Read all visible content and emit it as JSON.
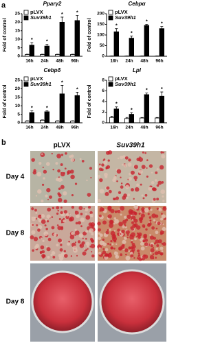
{
  "panel_labels": {
    "a": "a",
    "b": "b"
  },
  "panel_b": {
    "columns": [
      "pLVX",
      "Suv39h1"
    ],
    "rows": [
      "Day 4",
      "Day 8",
      "Day 8"
    ]
  },
  "chart_data": [
    {
      "type": "bar",
      "title": "Pparγ2",
      "y_label": "Fold of control",
      "categories": [
        "16h",
        "24h",
        "48h",
        "96h"
      ],
      "series": [
        {
          "name": "pLVX",
          "color": "#ffffff",
          "values": [
            1,
            1,
            1,
            1
          ],
          "errors": [
            0.2,
            0.2,
            0.2,
            0.2
          ]
        },
        {
          "name": "Suv39h1",
          "color": "#000000",
          "values": [
            6.5,
            6,
            20,
            21
          ],
          "errors": [
            1.5,
            1,
            3,
            3
          ]
        }
      ],
      "annotations": [
        "*",
        "*",
        "*",
        "*"
      ],
      "ylim": [
        0,
        25
      ],
      "yticks": [
        0,
        5,
        10,
        15,
        20,
        25
      ]
    },
    {
      "type": "bar",
      "title": "Cebpα",
      "y_label": "Fold of control",
      "categories": [
        "16h",
        "24h",
        "48h",
        "96h"
      ],
      "series": [
        {
          "name": "pLVX",
          "color": "#ffffff",
          "values": [
            1,
            1,
            1,
            1
          ],
          "errors": [
            0.5,
            0.5,
            0.5,
            0.5
          ]
        },
        {
          "name": "Suv39h1",
          "color": "#000000",
          "values": [
            115,
            85,
            145,
            130
          ],
          "errors": [
            15,
            10,
            5,
            10
          ]
        }
      ],
      "annotations": [
        "*",
        "*",
        "*",
        "*"
      ],
      "ylim": [
        0,
        200
      ],
      "yticks": [
        0,
        50,
        100,
        150,
        200
      ]
    },
    {
      "type": "bar",
      "title": "Cebpδ",
      "y_label": "Fold of control",
      "categories": [
        "16h",
        "24h",
        "48h",
        "96h"
      ],
      "series": [
        {
          "name": "pLVX",
          "color": "#ffffff",
          "values": [
            1,
            1.5,
            1,
            1
          ],
          "errors": [
            0.2,
            0.2,
            0.2,
            0.2
          ]
        },
        {
          "name": "Suv39h1",
          "color": "#000000",
          "values": [
            6,
            6.5,
            17,
            16
          ],
          "errors": [
            1,
            0.5,
            5,
            2
          ]
        }
      ],
      "annotations": [
        "*",
        "*",
        "*",
        "*"
      ],
      "ylim": [
        0,
        25
      ],
      "yticks": [
        0,
        5,
        10,
        15,
        20,
        25
      ]
    },
    {
      "type": "bar",
      "title": "Lpl",
      "y_label": "Fold of control",
      "categories": [
        "16h",
        "24h",
        "48h",
        "96h"
      ],
      "series": [
        {
          "name": "pLVX",
          "color": "#ffffff",
          "values": [
            1,
            0.8,
            0.9,
            0.9
          ],
          "errors": [
            0.2,
            0.2,
            0.1,
            0.1
          ]
        },
        {
          "name": "Suv39h1",
          "color": "#000000",
          "values": [
            2.6,
            1.6,
            5.3,
            5
          ],
          "errors": [
            0.4,
            0.3,
            0.3,
            0.8
          ]
        }
      ],
      "annotations": [
        "*",
        "*",
        "*",
        "*"
      ],
      "ylim": [
        0,
        8
      ],
      "yticks": [
        0,
        2,
        4,
        6,
        8
      ]
    }
  ]
}
